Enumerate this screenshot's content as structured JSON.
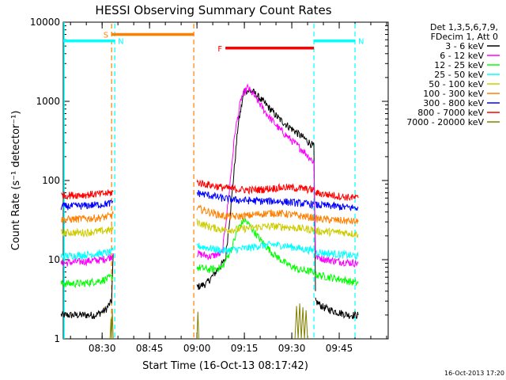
{
  "chart_data": {
    "type": "line",
    "title": "HESSI Observing Summary Count Rates",
    "xlabel": "Start Time (16-Oct-13 08:17:42)",
    "ylabel": "Count Rate (s⁻¹ detector⁻¹)",
    "yscale": "log",
    "ylim": [
      1,
      10000
    ],
    "xlim_minutes": [
      497.7,
      600.5
    ],
    "x_ticks": [
      "08:30",
      "08:45",
      "09:00",
      "09:15",
      "09:30",
      "09:45"
    ],
    "y_ticks": [
      "1",
      "10",
      "100",
      "1000",
      "10000"
    ],
    "legend_header": [
      "Det 1,3,5,6,7,9,",
      "FDecim 1, Att 0"
    ],
    "legend_position": "right",
    "footer_timestamp": "16-Oct-2013 17:20",
    "flags": [
      {
        "label": "S",
        "color": "#ff8000",
        "start": "08:33",
        "end": "08:59",
        "level": 7000
      },
      {
        "label": "N",
        "color": "#00ffff",
        "start": "08:17",
        "end": "08:34",
        "level": 5800
      },
      {
        "label": "N",
        "color": "#00ffff",
        "start": "09:37",
        "end": "09:50",
        "level": 5800
      },
      {
        "label": "F",
        "color": "#ff0000",
        "start": "09:09",
        "end": "09:37",
        "level": 4700
      }
    ],
    "vertical_markers": [
      {
        "time": "08:33",
        "color": "#ff8000"
      },
      {
        "time": "08:34",
        "color": "#00ffff"
      },
      {
        "time": "08:59",
        "color": "#ff8000"
      },
      {
        "time": "09:37",
        "color": "#00ffff"
      },
      {
        "time": "09:50",
        "color": "#00ffff"
      }
    ],
    "series": [
      {
        "name": "3 - 6 keV",
        "color": "#000000",
        "segments": [
          [
            [
              "08:17",
              2
            ],
            [
              "08:22",
              2
            ],
            [
              "08:28",
              2
            ],
            [
              "08:31",
              2.3
            ],
            [
              "08:33",
              3
            ],
            [
              "08:33.5",
              12
            ]
          ],
          [
            [
              "09:00",
              4.5
            ],
            [
              "09:03",
              5
            ],
            [
              "09:06",
              7
            ],
            [
              "09:09",
              10
            ],
            [
              "09:11",
              60
            ],
            [
              "09:13",
              500
            ],
            [
              "09:15",
              1400
            ],
            [
              "09:18",
              1300
            ],
            [
              "09:22",
              900
            ],
            [
              "09:26",
              600
            ],
            [
              "09:30",
              450
            ],
            [
              "09:34",
              340
            ],
            [
              "09:37",
              270
            ],
            [
              "09:37.5",
              4
            ]
          ],
          [
            [
              "09:37.5",
              3
            ],
            [
              "09:40",
              2.5
            ],
            [
              "09:44",
              2.2
            ],
            [
              "09:48",
              2
            ],
            [
              "09:51",
              2
            ]
          ]
        ]
      },
      {
        "name": "6 - 12 keV",
        "color": "#ff00ff",
        "segments": [
          [
            [
              "08:17",
              9
            ],
            [
              "08:24",
              9.5
            ],
            [
              "08:30",
              10
            ],
            [
              "08:33",
              11
            ],
            [
              "08:33.5",
              12
            ]
          ],
          [
            [
              "09:00",
              12
            ],
            [
              "09:04",
              11
            ],
            [
              "09:08",
              12
            ],
            [
              "09:10",
              60
            ],
            [
              "09:12",
              400
            ],
            [
              "09:14",
              1100
            ],
            [
              "09:16",
              1500
            ],
            [
              "09:18",
              1200
            ],
            [
              "09:22",
              700
            ],
            [
              "09:26",
              450
            ],
            [
              "09:30",
              320
            ],
            [
              "09:34",
              230
            ],
            [
              "09:37",
              170
            ],
            [
              "09:37.5",
              12
            ]
          ],
          [
            [
              "09:37.5",
              11
            ],
            [
              "09:41",
              10
            ],
            [
              "09:45",
              9.5
            ],
            [
              "09:51",
              9
            ]
          ]
        ]
      },
      {
        "name": "12 - 25 keV",
        "color": "#00ff00",
        "segments": [
          [
            [
              "08:17",
              5
            ],
            [
              "08:24",
              5
            ],
            [
              "08:30",
              5.5
            ],
            [
              "08:33",
              6
            ],
            [
              "08:33.5",
              6
            ]
          ],
          [
            [
              "09:00",
              8
            ],
            [
              "09:04",
              7.5
            ],
            [
              "09:08",
              8
            ],
            [
              "09:11",
              14
            ],
            [
              "09:13",
              25
            ],
            [
              "09:15",
              32
            ],
            [
              "09:17",
              26
            ],
            [
              "09:20",
              18
            ],
            [
              "09:24",
              12
            ],
            [
              "09:28",
              9
            ],
            [
              "09:32",
              7.5
            ],
            [
              "09:37",
              7
            ]
          ],
          [
            [
              "09:37.5",
              6.5
            ],
            [
              "09:42",
              6
            ],
            [
              "09:47",
              5.5
            ],
            [
              "09:51",
              5
            ]
          ]
        ]
      },
      {
        "name": "25 - 50 keV",
        "color": "#00ffff",
        "segments": [
          [
            [
              "08:17",
              11
            ],
            [
              "08:24",
              11.5
            ],
            [
              "08:30",
              12
            ],
            [
              "08:33",
              12.5
            ],
            [
              "08:33.5",
              13
            ]
          ],
          [
            [
              "09:00",
              15
            ],
            [
              "09:04",
              14
            ],
            [
              "09:08",
              13
            ],
            [
              "09:12",
              13.5
            ],
            [
              "09:16",
              14
            ],
            [
              "09:20",
              15
            ],
            [
              "09:24",
              15.5
            ],
            [
              "09:28",
              15
            ],
            [
              "09:32",
              14
            ],
            [
              "09:37",
              13
            ]
          ],
          [
            [
              "09:37.5",
              12.5
            ],
            [
              "09:42",
              12
            ],
            [
              "09:47",
              11.5
            ],
            [
              "09:51",
              11
            ]
          ]
        ]
      },
      {
        "name": "50 - 100 keV",
        "color": "#cccc00",
        "segments": [
          [
            [
              "08:17",
              22
            ],
            [
              "08:24",
              22
            ],
            [
              "08:30",
              23
            ],
            [
              "08:33",
              24
            ],
            [
              "08:33.5",
              26
            ]
          ],
          [
            [
              "09:00",
              30
            ],
            [
              "09:04",
              26
            ],
            [
              "09:08",
              24
            ],
            [
              "09:12",
              24
            ],
            [
              "09:16",
              25
            ],
            [
              "09:20",
              26
            ],
            [
              "09:24",
              26.5
            ],
            [
              "09:28",
              26
            ],
            [
              "09:32",
              25
            ],
            [
              "09:37",
              24
            ]
          ],
          [
            [
              "09:37.5",
              23
            ],
            [
              "09:42",
              22.5
            ],
            [
              "09:47",
              22
            ],
            [
              "09:51",
              21
            ]
          ]
        ]
      },
      {
        "name": "100 - 300 keV",
        "color": "#ff8000",
        "segments": [
          [
            [
              "08:17",
              32
            ],
            [
              "08:24",
              33
            ],
            [
              "08:30",
              34
            ],
            [
              "08:33",
              36
            ],
            [
              "08:33.5",
              38
            ]
          ],
          [
            [
              "09:00",
              45
            ],
            [
              "09:04",
              40
            ],
            [
              "09:08",
              36
            ],
            [
              "09:12",
              35
            ],
            [
              "09:16",
              36
            ],
            [
              "09:20",
              38
            ],
            [
              "09:24",
              39
            ],
            [
              "09:28",
              38
            ],
            [
              "09:32",
              36
            ],
            [
              "09:37",
              34
            ]
          ],
          [
            [
              "09:37.5",
              33
            ],
            [
              "09:42",
              32
            ],
            [
              "09:47",
              31
            ],
            [
              "09:51",
              30
            ]
          ]
        ]
      },
      {
        "name": "300 - 800 keV",
        "color": "#0000ff",
        "segments": [
          [
            [
              "08:17",
              47
            ],
            [
              "08:24",
              48
            ],
            [
              "08:30",
              50
            ],
            [
              "08:33",
              52
            ],
            [
              "08:33.5",
              55
            ]
          ],
          [
            [
              "09:00",
              70
            ],
            [
              "09:04",
              65
            ],
            [
              "09:08",
              60
            ],
            [
              "09:12",
              57
            ],
            [
              "09:16",
              56
            ],
            [
              "09:20",
              55
            ],
            [
              "09:24",
              55
            ],
            [
              "09:28",
              54
            ],
            [
              "09:32",
              52
            ],
            [
              "09:37",
              50
            ]
          ],
          [
            [
              "09:37.5",
              49
            ],
            [
              "09:42",
              48
            ],
            [
              "09:47",
              46
            ],
            [
              "09:51",
              45
            ]
          ]
        ]
      },
      {
        "name": "800 - 7000 keV",
        "color": "#ff0000",
        "segments": [
          [
            [
              "08:17",
              65
            ],
            [
              "08:24",
              66
            ],
            [
              "08:30",
              68
            ],
            [
              "08:33",
              70
            ],
            [
              "08:33.5",
              72
            ]
          ],
          [
            [
              "09:00",
              95
            ],
            [
              "09:04",
              88
            ],
            [
              "09:08",
              82
            ],
            [
              "09:12",
              78
            ],
            [
              "09:16",
              76
            ],
            [
              "09:20",
              77
            ],
            [
              "09:24",
              80
            ],
            [
              "09:28",
              82
            ],
            [
              "09:32",
              80
            ],
            [
              "09:37",
              76
            ]
          ],
          [
            [
              "09:37.5",
              70
            ],
            [
              "09:42",
              66
            ],
            [
              "09:47",
              62
            ],
            [
              "09:51",
              60
            ]
          ]
        ]
      },
      {
        "name": "7000 - 20000 keV",
        "color": "#808000",
        "segments": [
          [
            [
              "08:32.5",
              1
            ],
            [
              "08:32.8",
              1.8
            ],
            [
              "08:33",
              1
            ],
            [
              "08:33.2",
              2.4
            ],
            [
              "08:33.5",
              1
            ]
          ],
          [
            [
              "09:00",
              1
            ],
            [
              "09:00.3",
              2.2
            ],
            [
              "09:00.6",
              1
            ]
          ],
          [
            [
              "09:31",
              1
            ],
            [
              "09:31.5",
              2.6
            ],
            [
              "09:32",
              1
            ],
            [
              "09:32.5",
              2.8
            ],
            [
              "09:33",
              1
            ],
            [
              "09:33.5",
              2.5
            ],
            [
              "09:34",
              1
            ],
            [
              "09:34.5",
              2.3
            ],
            [
              "09:35",
              1
            ]
          ]
        ]
      }
    ]
  }
}
